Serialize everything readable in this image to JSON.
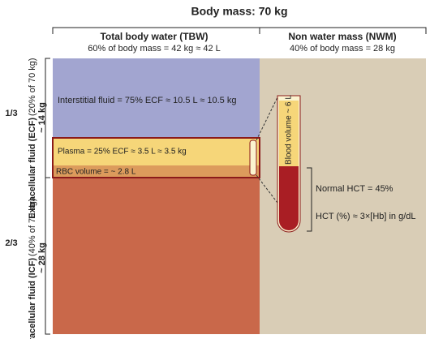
{
  "title": "Body mass: 70 kg",
  "columns": [
    {
      "title": "Total body water (TBW)",
      "subtitle": "60% of body mass = 42 kg ≈ 42 L"
    },
    {
      "title": "Non water mass (NWM)",
      "subtitle": "40% of body mass = 28 kg"
    }
  ],
  "fractions": [
    "1/3",
    "2/3"
  ],
  "ecf": {
    "name": "Extracellular fluid (ECF)",
    "share": "(20% of 70 kg)",
    "mass": "~ 14 kg"
  },
  "icf": {
    "name": "Intracellular fluid (ICF)",
    "share": "(40% of 70 kg)",
    "mass": "~ 28 kg"
  },
  "compartments": {
    "interstitial": "Interstitial fluid = 75% ECF ≈ 10.5 L ≈ 10.5 kg",
    "plasma": "Plasma = 25% ECF ≈  3.5 L ≈ 3.5 kg",
    "rbc": "RBC volume = ~ 2.8 L"
  },
  "tube_label": "Blood volume ~ 6 L",
  "hct_notes": [
    "Normal HCT = 45%",
    "HCT (%) ≈ 3×[Hb] in g/dL"
  ]
}
